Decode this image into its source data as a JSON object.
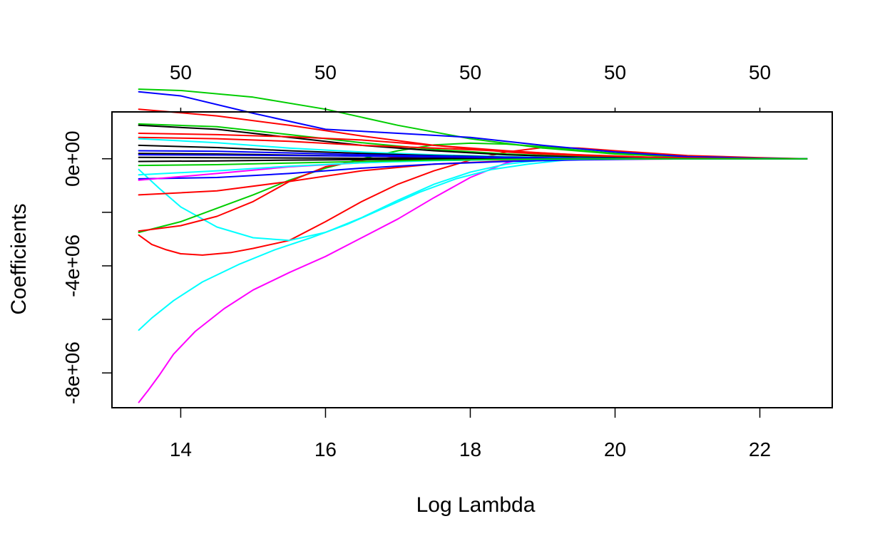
{
  "chart_data": {
    "type": "line",
    "title": "",
    "xlabel": "Log Lambda",
    "ylabel": "Coefficients",
    "xlim": [
      13.05,
      23.0
    ],
    "ylim": [
      -9300000.0,
      1750000.0
    ],
    "x_ticks": [
      14,
      16,
      18,
      20,
      22
    ],
    "x_tick_labels": [
      "14",
      "16",
      "18",
      "20",
      "22"
    ],
    "y_ticks": [
      -8000000.0,
      -6000000.0,
      -4000000.0,
      -2000000.0,
      0
    ],
    "y_tick_labels": [
      "-8e+06",
      "",
      "-4e+06",
      "",
      "0e+00"
    ],
    "top_axis": {
      "ticks": [
        14,
        16,
        18,
        20,
        22
      ],
      "labels": [
        "50",
        "50",
        "50",
        "50",
        "50"
      ]
    },
    "grid": false,
    "legend": "none",
    "series": [
      {
        "color": "#FF00FF",
        "x": [
          13.42,
          13.55,
          13.7,
          13.9,
          14.2,
          14.6,
          15.0,
          15.5,
          16.0,
          16.5,
          17.0,
          17.5,
          18.0,
          18.5,
          19.0,
          19.5,
          20.0,
          21.0,
          22.0,
          22.65
        ],
        "y": [
          -9100000.0,
          -8650000.0,
          -8100000.0,
          -7300000.0,
          -6450000.0,
          -5600000.0,
          -4900000.0,
          -4250000.0,
          -3650000.0,
          -2950000.0,
          -2250000.0,
          -1450000.0,
          -700000.0,
          -150000.0,
          180000.0,
          150000.0,
          80000.0,
          30000.0,
          10000.0,
          0.0
        ]
      },
      {
        "color": "#00FFFF",
        "x": [
          13.42,
          13.6,
          13.9,
          14.3,
          14.8,
          15.3,
          15.8,
          16.3,
          16.8,
          17.3,
          17.8,
          18.3,
          18.8,
          19.3,
          20.0,
          21.0,
          22.0,
          22.65
        ],
        "y": [
          -6400000.0,
          -5950000.0,
          -5300000.0,
          -4600000.0,
          -3950000.0,
          -3400000.0,
          -2950000.0,
          -2450000.0,
          -1850000.0,
          -1250000.0,
          -750000.0,
          -400000.0,
          -200000.0,
          -50000.0,
          0.0,
          0.0,
          0.0,
          0.0
        ]
      },
      {
        "color": "#FF0000",
        "x": [
          13.42,
          13.6,
          13.8,
          14.0,
          14.3,
          14.7,
          15.0,
          15.5,
          16.0,
          16.5,
          17.0,
          17.5,
          18.0,
          18.5,
          19.0,
          19.5,
          20.0,
          21.0,
          22.0,
          22.65
        ],
        "y": [
          -2850000.0,
          -3200000.0,
          -3400000.0,
          -3550000.0,
          -3600000.0,
          -3500000.0,
          -3350000.0,
          -3050000.0,
          -2350000.0,
          -1600000.0,
          -950000.0,
          -450000.0,
          -50000.0,
          250000.0,
          420000.0,
          400000.0,
          300000.0,
          120000.0,
          40000.0,
          0.0
        ]
      },
      {
        "color": "#00FFFF",
        "x": [
          13.42,
          13.7,
          14.0,
          14.5,
          15.0,
          15.5,
          16.0,
          16.5,
          17.0,
          17.5,
          18.0,
          18.5,
          19.0,
          20.0,
          21.0,
          22.0,
          22.65
        ],
        "y": [
          -400000.0,
          -1100000.0,
          -1800000.0,
          -2550000.0,
          -2950000.0,
          -3050000.0,
          -2750000.0,
          -2200000.0,
          -1550000.0,
          -950000.0,
          -500000.0,
          -200000.0,
          -50000.0,
          0.0,
          0.0,
          0.0,
          0.0
        ]
      },
      {
        "color": "#00CD00",
        "x": [
          13.42,
          14.0,
          14.5,
          15.0,
          15.5,
          16.0,
          16.5,
          17.0,
          17.5,
          18.0,
          18.5,
          19.0,
          19.5,
          20.0,
          21.0,
          22.0,
          22.65
        ],
        "y": [
          -2750000.0,
          -2350000.0,
          -1850000.0,
          -1350000.0,
          -800000.0,
          -350000.0,
          0.0,
          300000.0,
          520000.0,
          580000.0,
          550000.0,
          450000.0,
          320000.0,
          200000.0,
          80000.0,
          20000.0,
          0.0
        ]
      },
      {
        "color": "#FF0000",
        "x": [
          13.42,
          14.0,
          14.5,
          15.0,
          15.5,
          16.0,
          16.5,
          17.0,
          17.5,
          18.0,
          18.5,
          19.0,
          20.0,
          21.0,
          22.0,
          22.65
        ],
        "y": [
          -2700000.0,
          -2500000.0,
          -2150000.0,
          -1600000.0,
          -850000.0,
          -300000.0,
          -50000.0,
          50000.0,
          80000.0,
          60000.0,
          40000.0,
          20000.0,
          10000.0,
          0.0,
          0.0,
          0.0
        ]
      },
      {
        "color": "#FF0000",
        "x": [
          13.42,
          14.5,
          15.5,
          16.5,
          17.5,
          18.5,
          19.5,
          20.5,
          21.5,
          22.65
        ],
        "y": [
          -1350000.0,
          -1200000.0,
          -850000.0,
          -450000.0,
          -200000.0,
          -80000.0,
          -30000.0,
          -10000.0,
          0.0,
          0.0
        ]
      },
      {
        "color": "#00CD00",
        "x": [
          13.42,
          14.0,
          15.0,
          16.0,
          17.0,
          18.0,
          19.0,
          20.0,
          21.0,
          22.0,
          22.65
        ],
        "y": [
          2600000.0,
          2550000.0,
          2300000.0,
          1850000.0,
          1250000.0,
          750000.0,
          400000.0,
          180000.0,
          60000.0,
          10000.0,
          0.0
        ]
      },
      {
        "color": "#0000FF",
        "x": [
          13.42,
          14.0,
          15.0,
          16.0,
          17.0,
          18.0,
          19.0,
          20.0,
          21.0,
          22.0,
          22.65
        ],
        "y": [
          2500000.0,
          2350000.0,
          1700000.0,
          1100000.0,
          950000.0,
          800000.0,
          500000.0,
          250000.0,
          80000.0,
          20000.0,
          0.0
        ]
      },
      {
        "color": "#FF0000",
        "x": [
          13.42,
          14.5,
          15.5,
          16.5,
          17.5,
          18.5,
          19.5,
          20.5,
          21.5,
          22.65
        ],
        "y": [
          1850000.0,
          1600000.0,
          1250000.0,
          850000.0,
          500000.0,
          250000.0,
          100000.0,
          40000.0,
          10000.0,
          0.0
        ]
      },
      {
        "color": "#00CD00",
        "x": [
          13.42,
          14.5,
          15.5,
          16.5,
          17.5,
          18.5,
          19.5,
          20.5,
          21.5,
          22.65
        ],
        "y": [
          1300000.0,
          1200000.0,
          900000.0,
          600000.0,
          350000.0,
          180000.0,
          70000.0,
          20000.0,
          0.0,
          0.0
        ]
      },
      {
        "color": "#000000",
        "x": [
          13.42,
          14.5,
          15.5,
          16.5,
          17.5,
          18.5,
          19.5,
          20.5,
          21.5,
          22.65
        ],
        "y": [
          1250000.0,
          1100000.0,
          800000.0,
          500000.0,
          300000.0,
          150000.0,
          60000.0,
          20000.0,
          0.0,
          0.0
        ]
      },
      {
        "color": "#FF0000",
        "x": [
          13.42,
          14.5,
          15.5,
          16.5,
          17.5,
          18.5,
          19.5,
          20.5,
          21.5,
          22.65
        ],
        "y": [
          800000.0,
          750000.0,
          650000.0,
          500000.0,
          400000.0,
          280000.0,
          150000.0,
          60000.0,
          10000.0,
          0.0
        ]
      },
      {
        "color": "#00FFFF",
        "x": [
          13.42,
          14.5,
          15.5,
          16.5,
          17.5,
          18.5,
          19.5,
          20.5,
          21.5,
          22.65
        ],
        "y": [
          750000.0,
          600000.0,
          400000.0,
          250000.0,
          150000.0,
          80000.0,
          30000.0,
          10000.0,
          0.0,
          0.0
        ]
      },
      {
        "color": "#000000",
        "x": [
          13.42,
          14.5,
          15.5,
          16.5,
          17.5,
          18.5,
          19.5,
          20.5,
          21.5,
          22.65
        ],
        "y": [
          500000.0,
          420000.0,
          300000.0,
          200000.0,
          120000.0,
          60000.0,
          20000.0,
          10000.0,
          0.0,
          0.0
        ]
      },
      {
        "color": "#0000FF",
        "x": [
          13.42,
          14.5,
          15.5,
          16.5,
          17.5,
          18.5,
          19.5,
          20.5,
          21.5,
          22.65
        ],
        "y": [
          300000.0,
          280000.0,
          220000.0,
          150000.0,
          100000.0,
          50000.0,
          20000.0,
          0.0,
          0.0,
          0.0
        ]
      },
      {
        "color": "#000000",
        "x": [
          13.42,
          14.5,
          15.5,
          16.5,
          17.5,
          18.5,
          19.5,
          20.5,
          21.5,
          22.65
        ],
        "y": [
          200000.0,
          180000.0,
          140000.0,
          100000.0,
          60000.0,
          30000.0,
          10000.0,
          0.0,
          0.0,
          0.0
        ]
      },
      {
        "color": "#000000",
        "x": [
          13.42,
          14.5,
          15.5,
          16.5,
          17.5,
          18.5,
          19.5,
          20.5,
          21.5,
          22.65
        ],
        "y": [
          50000.0,
          40000.0,
          30000.0,
          20000.0,
          10000.0,
          0.0,
          0.0,
          0.0,
          0.0,
          0.0
        ]
      },
      {
        "color": "#000000",
        "x": [
          13.42,
          14.5,
          15.5,
          16.5,
          17.5,
          18.5,
          19.5,
          20.5,
          21.5,
          22.65
        ],
        "y": [
          -100000.0,
          -80000.0,
          -50000.0,
          -30000.0,
          -20000.0,
          -10000.0,
          0.0,
          0.0,
          0.0,
          0.0
        ]
      },
      {
        "color": "#0000FF",
        "x": [
          13.42,
          14.5,
          15.5,
          16.5,
          17.5,
          18.5,
          19.5,
          20.5,
          21.5,
          22.65
        ],
        "y": [
          -750000.0,
          -700000.0,
          -550000.0,
          -350000.0,
          -200000.0,
          -100000.0,
          -40000.0,
          -10000.0,
          0.0,
          0.0
        ]
      },
      {
        "color": "#FF00FF",
        "x": [
          13.42,
          14.5,
          15.5,
          16.5,
          17.5,
          18.5,
          19.5,
          20.5,
          21.5,
          22.65
        ],
        "y": [
          -800000.0,
          -550000.0,
          -300000.0,
          -150000.0,
          -60000.0,
          -20000.0,
          0.0,
          0.0,
          0.0,
          0.0
        ]
      },
      {
        "color": "#00FFFF",
        "x": [
          13.42,
          14.5,
          15.5,
          16.5,
          17.5,
          18.5,
          19.5,
          20.5,
          21.5,
          22.65
        ],
        "y": [
          -600000.0,
          -450000.0,
          -280000.0,
          -150000.0,
          -70000.0,
          -30000.0,
          -10000.0,
          0.0,
          0.0,
          0.0
        ]
      },
      {
        "color": "#FF0000",
        "x": [
          13.42,
          14.5,
          15.5,
          16.5,
          17.5,
          18.5,
          19.5,
          20.5,
          21.5,
          22.65
        ],
        "y": [
          950000.0,
          900000.0,
          820000.0,
          700000.0,
          500000.0,
          300000.0,
          140000.0,
          50000.0,
          10000.0,
          0.0
        ]
      },
      {
        "color": "#0000FF",
        "x": [
          13.42,
          14.5,
          15.5,
          16.5,
          17.5,
          18.5,
          19.5,
          20.5,
          21.5,
          22.65
        ],
        "y": [
          150000.0,
          140000.0,
          120000.0,
          100000.0,
          70000.0,
          40000.0,
          20000.0,
          0.0,
          0.0,
          0.0
        ]
      },
      {
        "color": "#00CD00",
        "x": [
          13.42,
          14.5,
          15.5,
          16.5,
          17.5,
          18.5,
          19.5,
          20.5,
          21.5,
          22.65
        ],
        "y": [
          -250000.0,
          -220000.0,
          -160000.0,
          -100000.0,
          -50000.0,
          -20000.0,
          0.0,
          0.0,
          0.0,
          0.0
        ]
      }
    ]
  }
}
